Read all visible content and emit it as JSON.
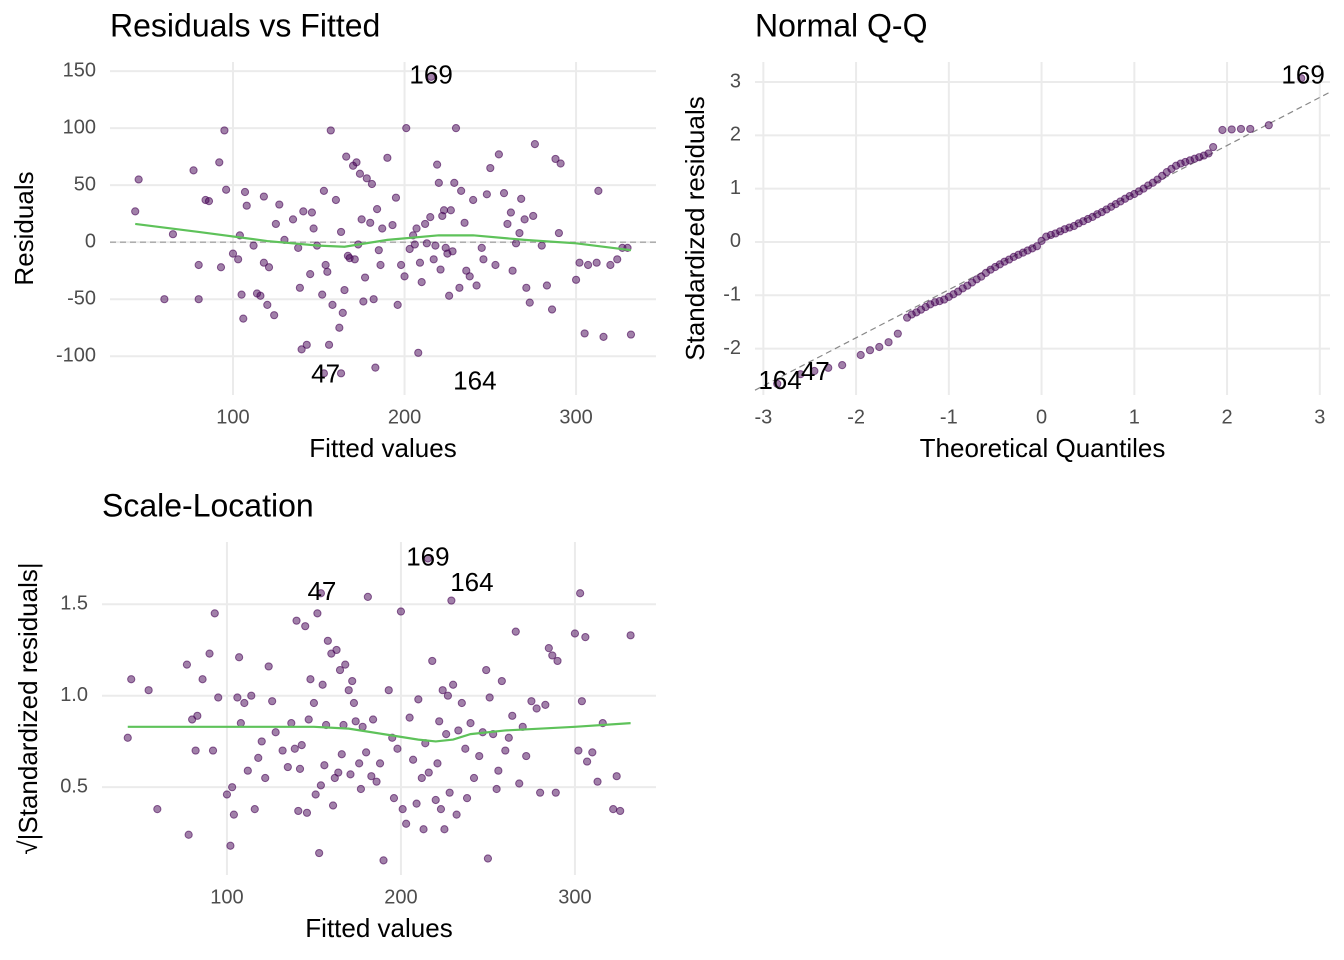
{
  "chart_data": [
    {
      "type": "scatter",
      "title": "Residuals vs Fitted",
      "x_label": "Fitted values",
      "y_label": "Residuals",
      "xlim": [
        28.3,
        346.6
      ],
      "ylim": [
        -134,
        158
      ],
      "xticks": [
        100,
        200,
        300
      ],
      "yticks": [
        -100,
        -50,
        0,
        50,
        100,
        150
      ],
      "grid": true,
      "color": "#440154",
      "x": [
        43,
        45,
        60,
        65,
        77,
        80,
        80,
        84,
        86,
        92,
        93,
        95,
        96,
        100,
        103,
        104,
        105,
        106,
        107,
        108,
        112,
        114,
        116,
        118,
        118,
        120,
        121,
        124,
        125,
        127,
        130,
        135,
        138,
        139,
        140,
        141,
        143,
        145,
        146,
        147,
        149,
        152,
        153,
        154,
        155,
        156,
        157,
        158,
        160,
        162,
        163,
        163,
        164,
        165,
        166,
        167,
        168,
        170,
        171,
        172,
        173,
        174,
        175,
        176,
        177,
        178,
        180,
        181,
        182,
        183,
        184,
        185,
        186,
        187,
        190,
        193,
        195,
        196,
        198,
        200,
        201,
        203,
        205,
        206,
        207,
        208,
        209,
        210,
        212,
        213,
        215,
        217,
        218,
        219,
        220,
        221,
        222,
        223,
        224,
        225,
        226,
        227,
        228,
        229,
        230,
        232,
        233,
        235,
        236,
        238,
        240,
        242,
        245,
        246,
        248,
        250,
        253,
        255,
        258,
        260,
        262,
        263,
        265,
        267,
        268,
        270,
        271,
        273,
        275,
        276,
        280,
        283,
        286,
        288,
        290,
        291,
        300,
        302,
        305,
        307,
        312,
        313,
        316,
        320,
        324,
        327,
        330,
        332,
        215.5,
        153
      ],
      "values": [
        27,
        55,
        -50,
        7,
        63,
        -50,
        -20,
        37,
        36,
        70,
        -22,
        98,
        46,
        -10,
        -15,
        6,
        -46,
        -67,
        44,
        32,
        -3,
        -45,
        -47,
        40,
        -18,
        -55,
        -22,
        -64,
        16,
        33,
        2,
        20,
        -5,
        -40,
        -94,
        27,
        -90,
        -28,
        26,
        12,
        -3,
        -46,
        45,
        -20,
        -26,
        -90,
        98,
        -55,
        37,
        -75,
        9,
        -115,
        -62,
        -42,
        75,
        -12,
        -14,
        67,
        -15,
        70,
        -2,
        60,
        20,
        -52,
        -31,
        56,
        17,
        51,
        -50,
        -110,
        29,
        -7,
        -20,
        12,
        74,
        15,
        39,
        -55,
        -20,
        -30,
        100,
        -6,
        6,
        -2,
        12,
        -97,
        -18,
        -35,
        16,
        -1,
        22,
        -15,
        -3,
        68,
        52,
        -24,
        23,
        28,
        -5,
        -10,
        -47,
        28,
        -8,
        52,
        100,
        -40,
        45,
        17,
        -25,
        -30,
        37,
        -38,
        -5,
        -15,
        42,
        65,
        -20,
        77,
        43,
        16,
        26,
        -25,
        -1,
        8,
        38,
        20,
        -40,
        -53,
        23,
        86,
        -3,
        -38,
        -59,
        73,
        8,
        69,
        -33,
        -18,
        -80,
        -20,
        -18,
        45,
        -83,
        -20,
        -15,
        -5,
        -5,
        -81,
        145,
        -115
      ],
      "ref_line": {
        "x": [
          28.3,
          346.6
        ],
        "values": [
          0,
          0
        ],
        "color": "#999999"
      },
      "smooth": {
        "x": [
          43,
          80,
          120,
          150,
          165,
          190,
          220,
          240,
          270,
          300,
          332
        ],
        "values": [
          16,
          9,
          1,
          -3,
          -4,
          2,
          6,
          6,
          2,
          -1,
          -7
        ],
        "color": "#5ec25a"
      },
      "annotations": [
        {
          "text": "169",
          "x": 215.5,
          "y": 145
        },
        {
          "text": "47",
          "x": 154,
          "y": -117
        },
        {
          "text": "164",
          "x": 241,
          "y": -123
        }
      ]
    },
    {
      "type": "scatter",
      "title": "Normal Q-Q",
      "x_label": "Theoretical Quantiles",
      "y_label": "Standardized residuals",
      "xlim": [
        -3.09,
        3.11
      ],
      "ylim": [
        -2.87,
        3.375
      ],
      "xticks": [
        -3,
        -2,
        -1,
        0,
        1,
        2,
        3
      ],
      "yticks": [
        -2,
        -1,
        0,
        1,
        2,
        3
      ],
      "grid": true,
      "color": "#440154",
      "x": [
        -2.85,
        -2.6,
        -2.45,
        -2.3,
        -2.15,
        -1.95,
        -1.85,
        -1.75,
        -1.65,
        -1.55,
        -1.45,
        -1.35,
        -1.25,
        -1.15,
        -1.05,
        -0.95,
        -0.85,
        -0.75,
        -0.65,
        -0.55,
        -0.45,
        -0.35,
        -0.25,
        -0.15,
        -0.05,
        0.05,
        0.15,
        0.25,
        0.35,
        0.45,
        0.55,
        0.65,
        0.75,
        0.85,
        0.95,
        1.05,
        1.15,
        1.25,
        1.35,
        1.45,
        1.55,
        1.65,
        1.75,
        1.85,
        1.95,
        2.05,
        2.15,
        2.25,
        2.45,
        2.8,
        -1.4,
        -1.3,
        -1.2,
        -1.1,
        -1.0,
        -0.9,
        -0.8,
        -0.7,
        -0.6,
        -0.5,
        -0.4,
        -0.3,
        -0.2,
        -0.1,
        0,
        0.1,
        0.2,
        0.3,
        0.4,
        0.5,
        0.6,
        0.7,
        0.8,
        0.9,
        1.0,
        1.1,
        1.2,
        1.3,
        1.4,
        1.5,
        1.6,
        1.7,
        1.8
      ],
      "values": [
        -2.66,
        -2.48,
        -2.42,
        -2.36,
        -2.31,
        -2.12,
        -2.03,
        -1.97,
        -1.88,
        -1.72,
        -1.42,
        -1.32,
        -1.22,
        -1.13,
        -1.08,
        -0.98,
        -0.87,
        -0.76,
        -0.65,
        -0.52,
        -0.42,
        -0.33,
        -0.24,
        -0.16,
        -0.08,
        0.1,
        0.16,
        0.24,
        0.3,
        0.39,
        0.47,
        0.56,
        0.66,
        0.76,
        0.86,
        0.95,
        1.06,
        1.17,
        1.31,
        1.43,
        1.5,
        1.56,
        1.62,
        1.78,
        2.1,
        2.11,
        2.12,
        2.12,
        2.19,
        3.07,
        -1.36,
        -1.27,
        -1.17,
        -1.11,
        -1.03,
        -0.93,
        -0.82,
        -0.7,
        -0.58,
        -0.47,
        -0.37,
        -0.28,
        -0.2,
        -0.12,
        0.02,
        0.13,
        0.2,
        0.27,
        0.35,
        0.43,
        0.52,
        0.61,
        0.71,
        0.81,
        0.9,
        1.0,
        1.11,
        1.24,
        1.37,
        1.47,
        1.53,
        1.59,
        1.66
      ],
      "ref_line": {
        "x": [
          -3.09,
          3.11
        ],
        "values": [
          -2.78,
          2.81
        ],
        "color": "#888888"
      },
      "annotations": [
        {
          "text": "169",
          "x": 2.82,
          "y": 3.1
        },
        {
          "text": "47",
          "x": -2.44,
          "y": -2.46
        },
        {
          "text": "164",
          "x": -2.82,
          "y": -2.63
        }
      ]
    },
    {
      "type": "scatter",
      "title": "Scale-Location",
      "x_label": "Fitted values",
      "y_label": "√|Standardized residuals|",
      "xlim": [
        28.2,
        346.6
      ],
      "ylim": [
        0.02,
        1.84
      ],
      "xticks": [
        100,
        200,
        300
      ],
      "yticks": [
        0.5,
        {
          "value": 1,
          "label": "1.0"
        },
        1.5
      ],
      "grid": true,
      "color": "#440154",
      "x": [
        43,
        45,
        55,
        60,
        77,
        78,
        80,
        82,
        83,
        86,
        90,
        92,
        93,
        95,
        100,
        102,
        103,
        104,
        106,
        107,
        108,
        110,
        112,
        114,
        116,
        118,
        120,
        122,
        124,
        126,
        128,
        132,
        135,
        137,
        139,
        140,
        141,
        142,
        143,
        145,
        146,
        147,
        148,
        150,
        151,
        152,
        153,
        154,
        155,
        156,
        157,
        158,
        160,
        161,
        162,
        163,
        164,
        165,
        166,
        167,
        168,
        170,
        171,
        172,
        173,
        174,
        176,
        177,
        178,
        180,
        181,
        183,
        184,
        186,
        188,
        190,
        193,
        195,
        196,
        198,
        200,
        201,
        203,
        205,
        207,
        209,
        210,
        212,
        213,
        214,
        216,
        218,
        220,
        221,
        222,
        223,
        224,
        225,
        226,
        227,
        228,
        229,
        230,
        232,
        233,
        235,
        237,
        238,
        240,
        242,
        245,
        247,
        249,
        250,
        251,
        253,
        255,
        256,
        258,
        260,
        262,
        264,
        266,
        268,
        270,
        272,
        275,
        278,
        280,
        283,
        285,
        287,
        289,
        290,
        300,
        302,
        303,
        304,
        306,
        307,
        310,
        313,
        316,
        322,
        324,
        326,
        332,
        215.5,
        154
      ],
      "values": [
        0.77,
        1.09,
        1.03,
        0.38,
        1.17,
        0.24,
        0.87,
        0.7,
        0.89,
        1.09,
        1.23,
        0.7,
        1.45,
        0.99,
        0.46,
        0.18,
        0.5,
        0.35,
        0.99,
        1.21,
        0.85,
        0.96,
        0.59,
        1.0,
        0.38,
        0.66,
        0.75,
        0.55,
        1.16,
        0.97,
        0.8,
        0.7,
        0.61,
        0.85,
        0.71,
        1.41,
        0.37,
        0.6,
        0.73,
        1.38,
        0.36,
        0.87,
        1.09,
        0.96,
        0.46,
        1.45,
        0.14,
        0.51,
        1.06,
        0.62,
        0.84,
        1.3,
        1.23,
        0.4,
        0.55,
        1.25,
        0.58,
        1.14,
        0.68,
        0.84,
        1.17,
        1.03,
        0.57,
        1.08,
        0.96,
        0.86,
        0.63,
        0.49,
        0.83,
        0.69,
        1.54,
        0.56,
        0.87,
        0.53,
        0.63,
        0.1,
        1.03,
        0.77,
        0.44,
        0.71,
        1.46,
        0.38,
        0.3,
        0.88,
        0.65,
        0.41,
        0.98,
        0.55,
        0.27,
        0.74,
        0.58,
        1.19,
        0.43,
        0.63,
        0.86,
        0.38,
        1.03,
        0.27,
        0.79,
        1.0,
        0.47,
        1.52,
        1.06,
        0.35,
        0.81,
        0.96,
        0.71,
        0.44,
        0.85,
        0.55,
        0.67,
        0.8,
        1.14,
        0.11,
        0.99,
        0.79,
        0.49,
        0.59,
        1.08,
        0.7,
        0.77,
        0.89,
        1.35,
        0.52,
        0.83,
        0.67,
        0.97,
        0.93,
        0.47,
        0.95,
        1.26,
        1.22,
        0.47,
        1.19,
        1.34,
        0.7,
        1.56,
        0.97,
        1.32,
        0.64,
        0.69,
        0.53,
        0.85,
        0.38,
        0.56,
        0.37,
        1.33,
        1.75,
        1.56
      ],
      "smooth": {
        "x": [
          43,
          100,
          150,
          170,
          190,
          210,
          220,
          230,
          240,
          260,
          300,
          332
        ],
        "values": [
          0.83,
          0.83,
          0.83,
          0.82,
          0.79,
          0.76,
          0.75,
          0.76,
          0.79,
          0.81,
          0.83,
          0.85
        ],
        "color": "#5ec25a"
      },
      "annotations": [
        {
          "text": "169",
          "x": 215.5,
          "y": 1.75
        },
        {
          "text": "164",
          "x": 240.8,
          "y": 1.61
        },
        {
          "text": "47",
          "x": 154.6,
          "y": 1.56
        }
      ]
    }
  ]
}
